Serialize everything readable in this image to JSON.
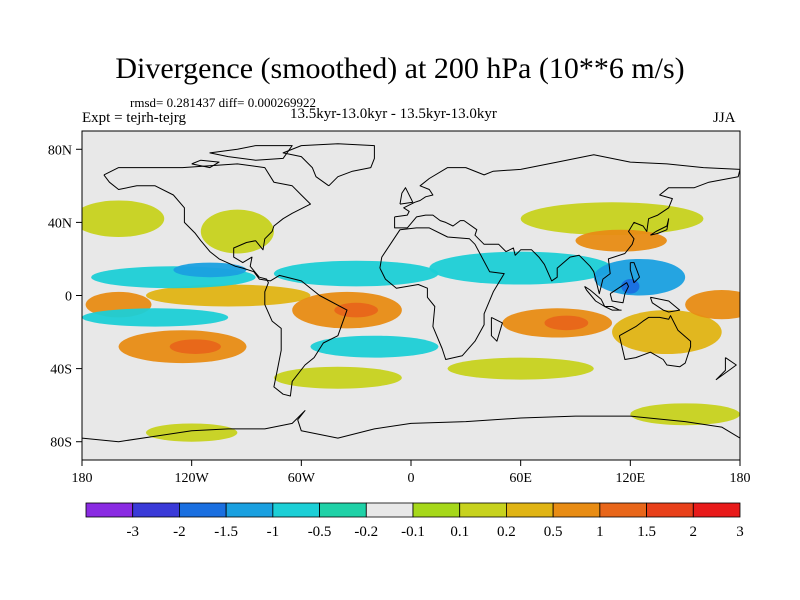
{
  "title": "Divergence (smoothed) at 200 hPa (10**6 m/s)",
  "stats": "rmsd= 0.281437 diff= 0.000269922",
  "experiment": "Expt = tejrh-tejrg",
  "period": "13.5kyr-13.0kyr - 13.5kyr-13.0kyr",
  "season": "JJA",
  "map": {
    "projection": "cylindrical equidistant",
    "lon_range": [
      -180,
      180
    ],
    "lat_range": [
      -90,
      90
    ],
    "lat_ticks": [
      {
        "value": 80,
        "label": "80N"
      },
      {
        "value": 40,
        "label": "40N"
      },
      {
        "value": 0,
        "label": "0"
      },
      {
        "value": -40,
        "label": "40S"
      },
      {
        "value": -80,
        "label": "80S"
      }
    ],
    "lon_ticks": [
      {
        "value": -180,
        "label": "180"
      },
      {
        "value": -120,
        "label": "120W"
      },
      {
        "value": -60,
        "label": "60W"
      },
      {
        "value": 0,
        "label": "0"
      },
      {
        "value": 60,
        "label": "60E"
      },
      {
        "value": 120,
        "label": "120E"
      },
      {
        "value": 180,
        "label": "180"
      }
    ],
    "background_color": "#e8e8e8"
  },
  "colorbar": {
    "colors": [
      "#8a2be2",
      "#3a3ad8",
      "#1a6fe0",
      "#1aa0e0",
      "#1ccfd6",
      "#1fd1a7",
      "#e8e8e8",
      "#a6d81a",
      "#c7d21e",
      "#e0b414",
      "#e88c14",
      "#e8661a",
      "#e8401a",
      "#e81a1a"
    ],
    "labels": [
      "-3",
      "-2",
      "-1.5",
      "-1",
      "-0.5",
      "-0.2",
      "-0.1",
      "0.1",
      "0.2",
      "0.5",
      "1",
      "1.5",
      "2",
      "3"
    ]
  },
  "features": [
    {
      "label": "Eq-Pacific-W",
      "lon": -160,
      "lat": -5,
      "rlon": 18,
      "rlat": 7,
      "level": 1.0
    },
    {
      "label": "S-Pacific-high",
      "lon": -125,
      "lat": -28,
      "rlon": 35,
      "rlat": 9,
      "level": 1.0
    },
    {
      "label": "S-Pacific-core",
      "lon": -118,
      "lat": -28,
      "rlon": 14,
      "rlat": 4,
      "level": 1.5
    },
    {
      "label": "Eq-Pacific-E",
      "lon": -100,
      "lat": 0,
      "rlon": 45,
      "rlat": 6,
      "level": 0.5
    },
    {
      "label": "Pacific-blue-N",
      "lon": -130,
      "lat": 10,
      "rlon": 45,
      "rlat": 6,
      "level": -0.5
    },
    {
      "label": "Pacific-blue-core",
      "lon": -110,
      "lat": 14,
      "rlon": 20,
      "rlat": 4,
      "level": -1.0
    },
    {
      "label": "S-Pacific-blue",
      "lon": -140,
      "lat": -12,
      "rlon": 40,
      "rlat": 5,
      "level": -0.5
    },
    {
      "label": "N-Pacific-green",
      "lon": -160,
      "lat": 42,
      "rlon": 25,
      "rlat": 10,
      "level": 0.2
    },
    {
      "label": "N-Pacific-green-2",
      "lon": -95,
      "lat": 35,
      "rlon": 20,
      "rlat": 12,
      "level": 0.2
    },
    {
      "label": "Atlantic-orange",
      "lon": -35,
      "lat": -8,
      "rlon": 30,
      "rlat": 10,
      "level": 1.0
    },
    {
      "label": "Atlantic-core",
      "lon": -30,
      "lat": -8,
      "rlon": 12,
      "rlat": 4,
      "level": 1.5
    },
    {
      "label": "Atlantic-blue",
      "lon": -30,
      "lat": 12,
      "rlon": 45,
      "rlat": 7,
      "level": -0.5
    },
    {
      "label": "S-Atlantic-blue",
      "lon": -20,
      "lat": -28,
      "rlon": 35,
      "rlat": 6,
      "level": -0.5
    },
    {
      "label": "S-Atlantic-green",
      "lon": -40,
      "lat": -45,
      "rlon": 35,
      "rlat": 6,
      "level": 0.2
    },
    {
      "label": "Africa-blue",
      "lon": 60,
      "lat": 15,
      "rlon": 50,
      "rlat": 9,
      "level": -0.5
    },
    {
      "label": "Indian-orange",
      "lon": 80,
      "lat": -15,
      "rlon": 30,
      "rlat": 8,
      "level": 1.0
    },
    {
      "label": "Indian-core",
      "lon": 85,
      "lat": -15,
      "rlon": 12,
      "rlat": 4,
      "level": 1.5
    },
    {
      "label": "Maritime-blue",
      "lon": 125,
      "lat": 10,
      "rlon": 25,
      "rlat": 10,
      "level": -1.0
    },
    {
      "label": "Maritime-purple",
      "lon": 120,
      "lat": 5,
      "rlon": 5,
      "rlat": 4,
      "level": -1.5
    },
    {
      "label": "Australia-green",
      "lon": 140,
      "lat": -20,
      "rlon": 30,
      "rlat": 12,
      "level": 0.5
    },
    {
      "label": "W-Pacific-orange",
      "lon": 170,
      "lat": -5,
      "rlon": 20,
      "rlat": 8,
      "level": 1.0
    },
    {
      "label": "N-Asia-green",
      "lon": 110,
      "lat": 42,
      "rlon": 50,
      "rlat": 9,
      "level": 0.2
    },
    {
      "label": "Asia-orange",
      "lon": 115,
      "lat": 30,
      "rlon": 25,
      "rlat": 6,
      "level": 1.0
    },
    {
      "label": "S-Indian-green",
      "lon": 60,
      "lat": -40,
      "rlon": 40,
      "rlat": 6,
      "level": 0.2
    },
    {
      "label": "S-Ocean-green",
      "lon": 150,
      "lat": -65,
      "rlon": 30,
      "rlat": 6,
      "level": 0.2
    },
    {
      "label": "Antarctic-green",
      "lon": -120,
      "lat": -75,
      "rlon": 25,
      "rlat": 5,
      "level": 0.2
    }
  ]
}
